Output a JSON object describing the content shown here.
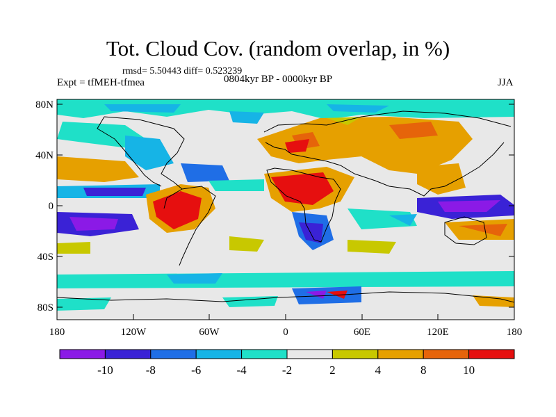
{
  "title": "Tot. Cloud Cov. (random overlap, in %)",
  "stats": "rmsd= 5.50443 diff= 0.523239",
  "experiment": "Expt = tfMEH-tfmea",
  "period": "0804kyr BP - 0000kyr BP",
  "season": "JJA",
  "lat_ticks": [
    "80N",
    "40N",
    "0",
    "40S",
    "80S"
  ],
  "lon_ticks": [
    "180",
    "120W",
    "60W",
    "0",
    "60E",
    "120E",
    "180"
  ],
  "colorbar": {
    "labels": [
      "-10",
      "-8",
      "-6",
      "-4",
      "-2",
      "2",
      "4",
      "8",
      "10"
    ],
    "colors": [
      "#8b1ae6",
      "#3a22d6",
      "#1f6ee6",
      "#16b4e6",
      "#1fe0c8",
      "#e8e8e8",
      "#c8c800",
      "#e6a000",
      "#e6640a",
      "#e60f0f"
    ]
  }
}
